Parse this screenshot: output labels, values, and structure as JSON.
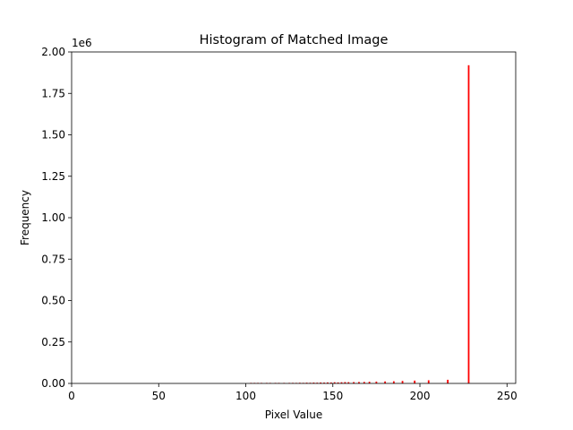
{
  "chart_data": {
    "type": "bar",
    "title": "Histogram of Matched Image",
    "xlabel": "Pixel Value",
    "ylabel": "Frequency",
    "y_offset_label": "1e6",
    "xlim": [
      0,
      255
    ],
    "ylim": [
      0,
      2000000
    ],
    "x_ticks": [
      0,
      50,
      100,
      150,
      200,
      250
    ],
    "x_tick_labels": [
      "0",
      "50",
      "100",
      "150",
      "200",
      "250"
    ],
    "y_ticks": [
      0,
      250000,
      500000,
      750000,
      1000000,
      1250000,
      1500000,
      1750000,
      2000000
    ],
    "y_tick_labels": [
      "0.00",
      "0.25",
      "0.50",
      "0.75",
      "1.00",
      "1.25",
      "1.50",
      "1.75",
      "2.00"
    ],
    "grid": false,
    "bar_color": "#ff0000",
    "x": [
      103,
      105,
      107,
      109,
      112,
      114,
      117,
      119,
      122,
      125,
      127,
      129,
      131,
      133,
      135,
      137,
      139,
      141,
      143,
      145,
      147,
      149,
      151,
      153,
      155,
      157,
      159,
      162,
      165,
      168,
      171,
      175,
      180,
      185,
      190,
      197,
      205,
      216,
      228
    ],
    "values": [
      1000,
      1500,
      2000,
      1500,
      2000,
      2500,
      2000,
      3000,
      2500,
      3000,
      3500,
      3000,
      4000,
      3500,
      4500,
      4000,
      5000,
      4500,
      5500,
      5000,
      6000,
      5500,
      7000,
      6000,
      7000,
      8000,
      7500,
      8000,
      8500,
      9000,
      10000,
      11000,
      12000,
      13000,
      15000,
      17000,
      19000,
      22000,
      1920000
    ]
  }
}
